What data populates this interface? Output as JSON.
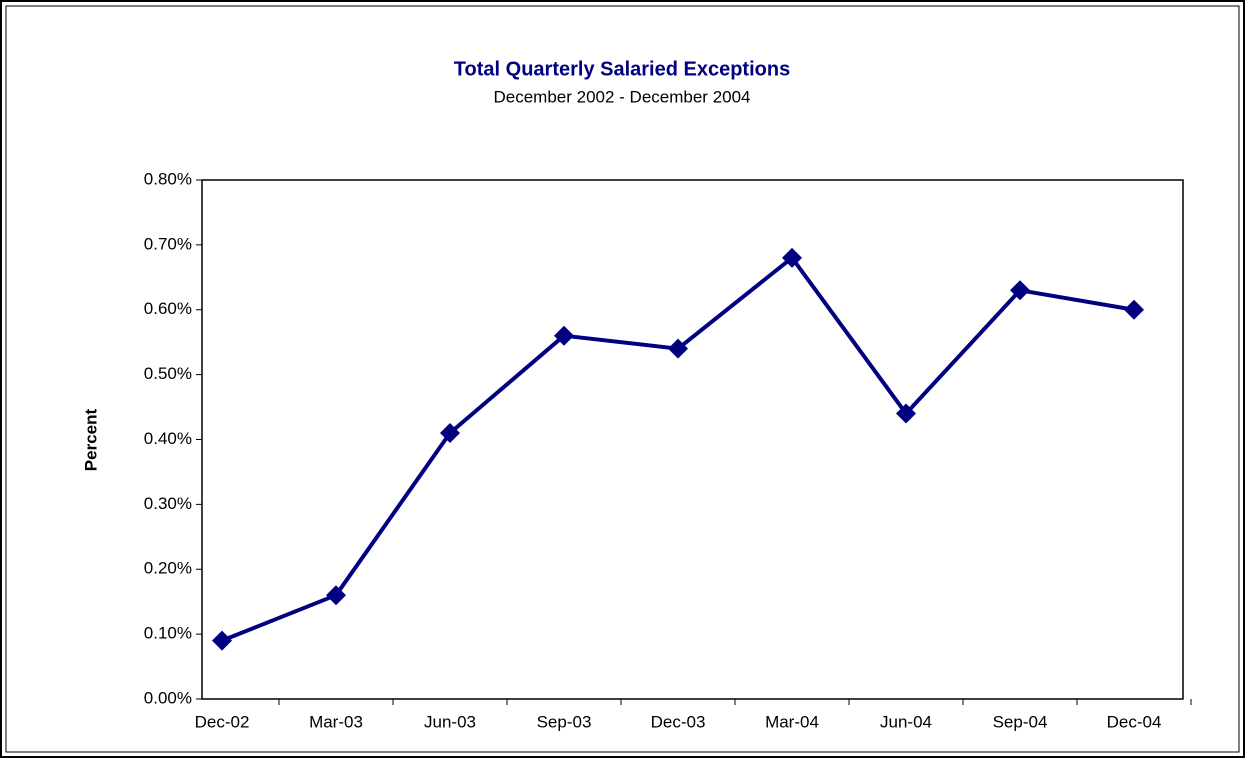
{
  "chart_data": {
    "type": "line",
    "title": "Total Quarterly Salaried Exceptions",
    "subtitle": "December 2002 - December 2004",
    "y_label": "Percent",
    "categories": [
      "Dec-02",
      "Mar-03",
      "Jun-03",
      "Sep-03",
      "Dec-03",
      "Mar-04",
      "Jun-04",
      "Sep-04",
      "Dec-04"
    ],
    "series": [
      {
        "name": "Total Quarterly Salaried Exceptions",
        "color": "#000080",
        "values": [
          0.09,
          0.16,
          0.41,
          0.56,
          0.54,
          0.68,
          0.44,
          0.63,
          0.6
        ]
      }
    ],
    "ylim": [
      0,
      0.8
    ],
    "yticks": [
      {
        "value": 0,
        "label": "0.00%"
      },
      {
        "value": 0.1,
        "label": "0.10%"
      },
      {
        "value": 0.2,
        "label": "0.20%"
      },
      {
        "value": 0.3,
        "label": "0.30%"
      },
      {
        "value": 0.4,
        "label": "0.40%"
      },
      {
        "value": 0.5,
        "label": "0.50%"
      },
      {
        "value": 0.6,
        "label": "0.60%"
      },
      {
        "value": 0.7,
        "label": "0.70%"
      },
      {
        "value": 0.8,
        "label": "0.80%"
      }
    ],
    "grid": false,
    "legend": false
  }
}
